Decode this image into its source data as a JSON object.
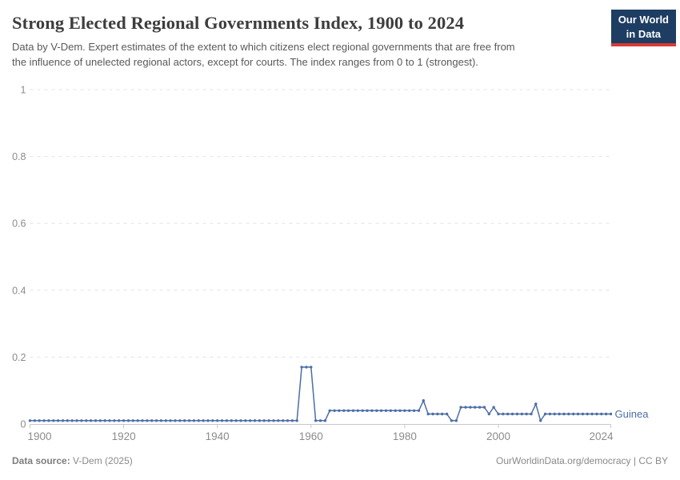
{
  "header": {
    "logo_text": "Our World\nin Data",
    "logo_bg": "#1d3d63",
    "logo_bar": "#d93a34"
  },
  "footer": {
    "source_label": "Data source:",
    "source_value": " V-Dem (2025)",
    "right_text": "OurWorldinData.org/democracy | CC BY"
  },
  "chart_data": {
    "type": "line",
    "title": "Strong Elected Regional Governments Index, 1900 to 2024",
    "subtitle": "Data by V-Dem. Expert estimates of the extent to which citizens elect regional governments that are free from\nthe influence of unelected regional actors, except for courts. The index ranges from 0 to 1 (strongest).",
    "x_range": [
      1900,
      2024
    ],
    "y_range": [
      0,
      1
    ],
    "x_ticks": [
      1900,
      1920,
      1940,
      1960,
      1980,
      2000,
      2024
    ],
    "y_ticks": [
      0,
      0.2,
      0.4,
      0.6,
      0.8,
      1
    ],
    "grid": "dashed-horizontal",
    "legend_position": "end-of-line",
    "line_color": "#4c6ea9",
    "series": [
      {
        "name": "Guinea",
        "start_year": 1900,
        "values": [
          0.01,
          0.01,
          0.01,
          0.01,
          0.01,
          0.01,
          0.01,
          0.01,
          0.01,
          0.01,
          0.01,
          0.01,
          0.01,
          0.01,
          0.01,
          0.01,
          0.01,
          0.01,
          0.01,
          0.01,
          0.01,
          0.01,
          0.01,
          0.01,
          0.01,
          0.01,
          0.01,
          0.01,
          0.01,
          0.01,
          0.01,
          0.01,
          0.01,
          0.01,
          0.01,
          0.01,
          0.01,
          0.01,
          0.01,
          0.01,
          0.01,
          0.01,
          0.01,
          0.01,
          0.01,
          0.01,
          0.01,
          0.01,
          0.01,
          0.01,
          0.01,
          0.01,
          0.01,
          0.01,
          0.01,
          0.01,
          0.01,
          0.01,
          0.17,
          0.17,
          0.17,
          0.01,
          0.01,
          0.01,
          0.04,
          0.04,
          0.04,
          0.04,
          0.04,
          0.04,
          0.04,
          0.04,
          0.04,
          0.04,
          0.04,
          0.04,
          0.04,
          0.04,
          0.04,
          0.04,
          0.04,
          0.04,
          0.04,
          0.04,
          0.07,
          0.03,
          0.03,
          0.03,
          0.03,
          0.03,
          0.01,
          0.01,
          0.05,
          0.05,
          0.05,
          0.05,
          0.05,
          0.05,
          0.03,
          0.05,
          0.03,
          0.03,
          0.03,
          0.03,
          0.03,
          0.03,
          0.03,
          0.03,
          0.06,
          0.01,
          0.03,
          0.03,
          0.03,
          0.03,
          0.03,
          0.03,
          0.03,
          0.03,
          0.03,
          0.03,
          0.03,
          0.03,
          0.03,
          0.03,
          0.03
        ]
      }
    ]
  }
}
